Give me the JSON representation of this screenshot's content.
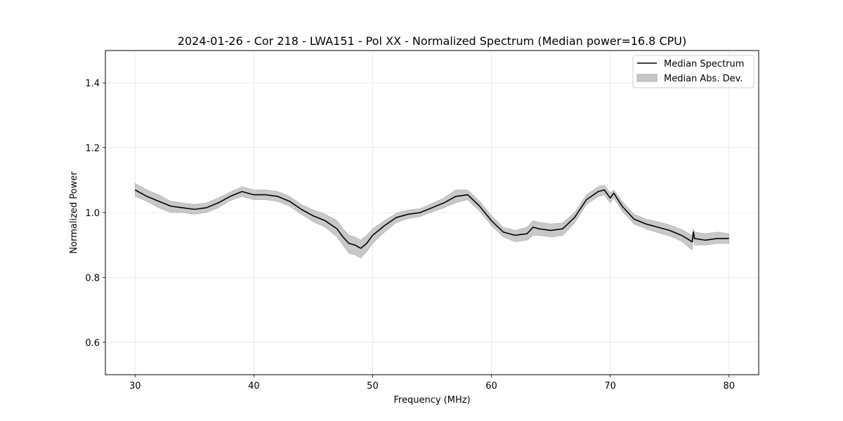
{
  "chart_data": {
    "type": "line",
    "title": "2024-01-26 - Cor 218 - LWA151 - Pol XX - Normalized Spectrum (Median power=16.8 CPU)",
    "xlabel": "Frequency (MHz)",
    "ylabel": "Normalized Power",
    "xlim": [
      27.5,
      82.5
    ],
    "ylim": [
      0.5,
      1.5
    ],
    "xticks": [
      30,
      40,
      50,
      60,
      70,
      80
    ],
    "xtick_labels": [
      "30",
      "40",
      "50",
      "60",
      "70",
      "80"
    ],
    "yticks": [
      0.6,
      0.8,
      1.0,
      1.2,
      1.4
    ],
    "ytick_labels": [
      "0.6",
      "0.8",
      "1.0",
      "1.2",
      "1.4"
    ],
    "grid": true,
    "legend": {
      "placement": "top-right",
      "entries": [
        {
          "label": "Median Spectrum",
          "kind": "line",
          "color": "#000000"
        },
        {
          "label": "Median Abs. Dev.",
          "kind": "band",
          "color": "#c8c8c8"
        }
      ]
    },
    "series": [
      {
        "name": "Median Spectrum",
        "color": "#000000",
        "x": [
          30,
          31,
          32,
          33,
          34,
          35,
          36,
          37,
          38,
          39,
          40,
          41,
          42,
          43,
          44,
          45,
          46,
          47,
          47.5,
          48,
          48.5,
          49,
          49.5,
          50,
          51,
          52,
          53,
          54,
          55,
          56,
          57,
          58,
          59,
          60,
          61,
          62,
          63,
          63.5,
          64,
          65,
          66,
          67,
          68,
          69,
          69.5,
          70,
          70.3,
          71,
          72,
          73,
          74,
          75,
          76,
          76.9,
          77,
          77.1,
          78,
          79,
          80
        ],
        "y": [
          1.07,
          1.05,
          1.035,
          1.02,
          1.015,
          1.01,
          1.015,
          1.03,
          1.05,
          1.065,
          1.055,
          1.055,
          1.05,
          1.035,
          1.01,
          0.99,
          0.975,
          0.95,
          0.925,
          0.905,
          0.9,
          0.89,
          0.905,
          0.93,
          0.96,
          0.985,
          0.995,
          1.0,
          1.015,
          1.03,
          1.05,
          1.055,
          1.02,
          0.975,
          0.94,
          0.93,
          0.935,
          0.955,
          0.95,
          0.945,
          0.95,
          0.985,
          1.04,
          1.065,
          1.07,
          1.045,
          1.06,
          1.02,
          0.98,
          0.965,
          0.955,
          0.945,
          0.93,
          0.91,
          0.94,
          0.92,
          0.915,
          0.92,
          0.92
        ]
      },
      {
        "name": "Median Abs. Dev.",
        "color": "#c8c8c8",
        "x": [
          30,
          31,
          32,
          33,
          34,
          35,
          36,
          37,
          38,
          39,
          40,
          41,
          42,
          43,
          44,
          45,
          46,
          47,
          47.5,
          48,
          48.5,
          49,
          49.5,
          50,
          51,
          52,
          53,
          54,
          55,
          56,
          57,
          58,
          59,
          60,
          61,
          62,
          63,
          63.5,
          64,
          65,
          66,
          67,
          68,
          69,
          69.5,
          70,
          70.3,
          71,
          72,
          73,
          74,
          75,
          76,
          76.9,
          77,
          77.1,
          78,
          79,
          80
        ],
        "upper": [
          1.09,
          1.07,
          1.055,
          1.035,
          1.03,
          1.025,
          1.03,
          1.045,
          1.063,
          1.08,
          1.07,
          1.07,
          1.065,
          1.05,
          1.025,
          1.008,
          0.995,
          0.975,
          0.95,
          0.93,
          0.925,
          0.915,
          0.93,
          0.95,
          0.975,
          0.998,
          1.008,
          1.012,
          1.028,
          1.045,
          1.07,
          1.07,
          1.035,
          0.99,
          0.955,
          0.945,
          0.955,
          0.975,
          0.97,
          0.965,
          0.968,
          1.0,
          1.055,
          1.08,
          1.085,
          1.06,
          1.07,
          1.035,
          0.995,
          0.98,
          0.972,
          0.962,
          0.948,
          0.93,
          0.95,
          0.94,
          0.935,
          0.94,
          0.935
        ],
        "lower": [
          1.05,
          1.035,
          1.015,
          1.0,
          1.0,
          0.995,
          1.0,
          1.015,
          1.037,
          1.05,
          1.04,
          1.04,
          1.035,
          1.02,
          0.995,
          0.972,
          0.955,
          0.925,
          0.9,
          0.875,
          0.87,
          0.86,
          0.88,
          0.905,
          0.94,
          0.97,
          0.982,
          0.988,
          1.002,
          1.015,
          1.03,
          1.04,
          1.005,
          0.96,
          0.925,
          0.91,
          0.915,
          0.93,
          0.93,
          0.925,
          0.93,
          0.968,
          1.025,
          1.05,
          1.055,
          1.03,
          1.045,
          1.005,
          0.965,
          0.95,
          0.938,
          0.928,
          0.912,
          0.885,
          0.925,
          0.9,
          0.9,
          0.905,
          0.905
        ]
      }
    ]
  }
}
